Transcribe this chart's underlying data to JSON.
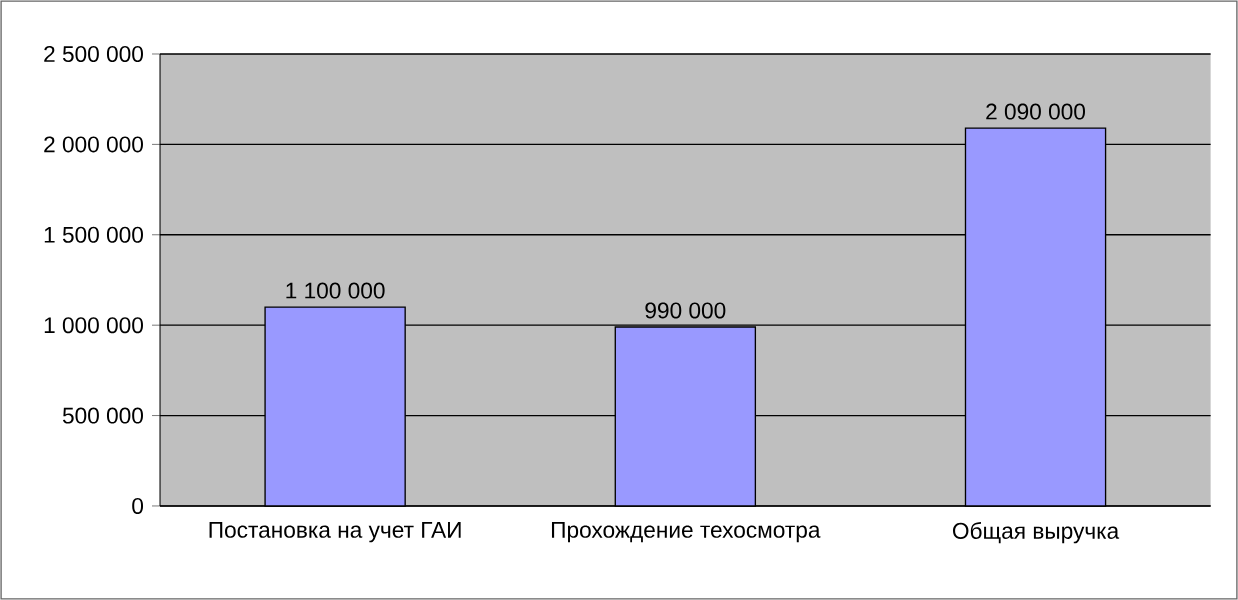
{
  "chart_data": {
    "type": "bar",
    "categories": [
      "Постановка на учет ГАИ",
      "Прохождение техосмотра",
      "Общая выручка"
    ],
    "values": [
      1100000,
      990000,
      2090000
    ],
    "value_labels": [
      "1 100 000",
      "990 000",
      "2 090 000"
    ],
    "color": "#9999ff",
    "ylim": [
      0,
      2500000
    ],
    "yticks": [
      {
        "value": 0,
        "label": "0"
      },
      {
        "value": 500000,
        "label": "500 000"
      },
      {
        "value": 1000000,
        "label": "1 000 000"
      },
      {
        "value": 1500000,
        "label": "1 500 000"
      },
      {
        "value": 2000000,
        "label": "2 000 000"
      },
      {
        "value": 2500000,
        "label": "2 500 000"
      }
    ],
    "grid": "y"
  }
}
